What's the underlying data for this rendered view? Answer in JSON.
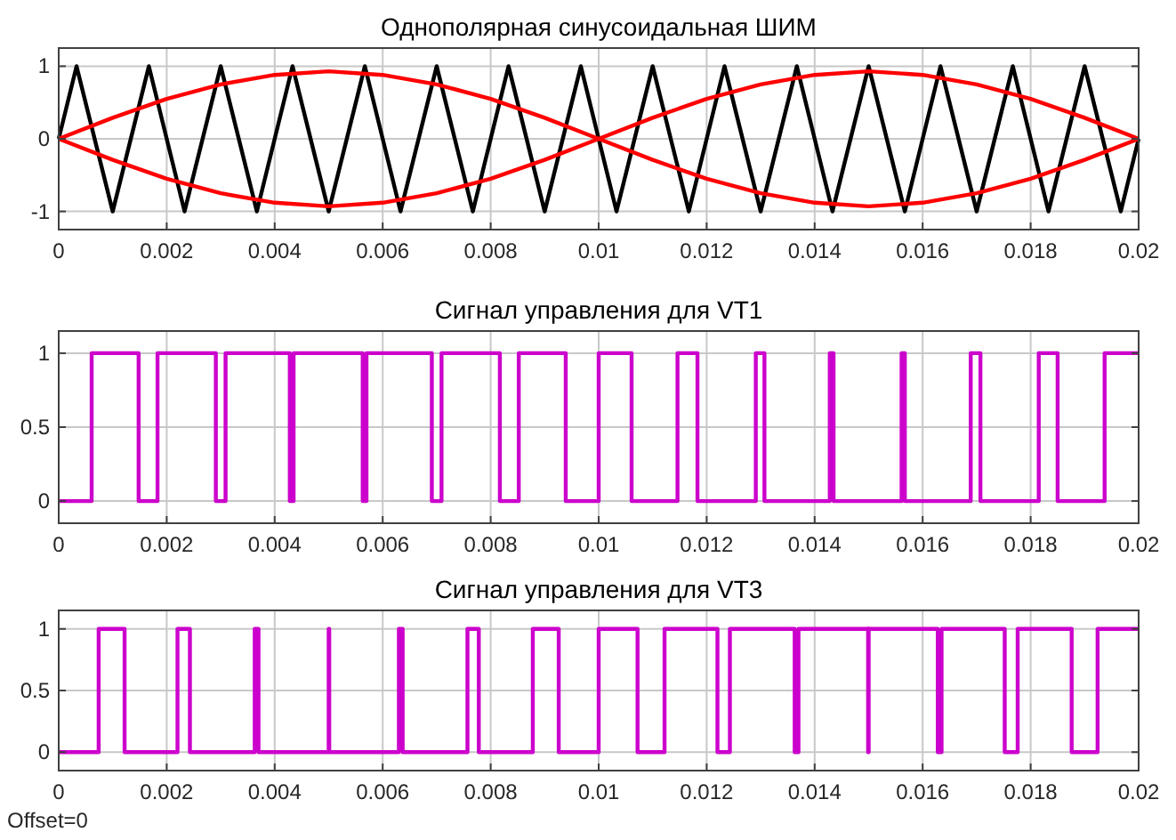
{
  "chart_data": [
    {
      "type": "line",
      "title": "Однополярная синусоидальная ШИМ",
      "xlim": [
        0,
        0.02
      ],
      "xticks": [
        0,
        0.002,
        0.004,
        0.006,
        0.008,
        0.01,
        0.012,
        0.014,
        0.016,
        0.018,
        0.02
      ],
      "ylim": [
        -1.25,
        1.25
      ],
      "yticks": [
        -1,
        0,
        1
      ],
      "grid": true,
      "series": [
        {
          "color": "#000000",
          "x": [
            0,
            0.00033,
            0.001,
            0.00167,
            0.00233,
            0.003,
            0.00367,
            0.00433,
            0.005,
            0.00567,
            0.00633,
            0.007,
            0.00767,
            0.00833,
            0.009,
            0.00967,
            0.01033,
            0.011,
            0.01167,
            0.01233,
            0.013,
            0.01367,
            0.01433,
            0.015,
            0.01567,
            0.01633,
            0.017,
            0.01767,
            0.01833,
            0.019,
            0.01967,
            0.02
          ],
          "values": [
            0,
            1,
            -1,
            1,
            -1,
            1,
            -1,
            1,
            -1,
            1,
            -1,
            1,
            -1,
            1,
            -1,
            1,
            -1,
            1,
            -1,
            1,
            -1,
            1,
            -1,
            1,
            -1,
            1,
            -1,
            1,
            -1,
            1,
            -1,
            0
          ]
        },
        {
          "color": "#ff0000",
          "x": [
            0,
            0.001,
            0.002,
            0.003,
            0.004,
            0.005,
            0.006,
            0.007,
            0.008,
            0.009,
            0.01,
            0.011,
            0.012,
            0.013,
            0.014,
            0.015,
            0.016,
            0.017,
            0.018,
            0.019,
            0.02,
            null,
            0,
            0.001,
            0.002,
            0.003,
            0.004,
            0.005,
            0.006,
            0.007,
            0.008,
            0.009,
            0.01,
            0.011,
            0.012,
            0.013,
            0.014,
            0.015,
            0.016,
            0.017,
            0.018,
            0.019,
            0.02
          ],
          "values": [
            0,
            0.29,
            0.55,
            0.75,
            0.88,
            0.93,
            0.88,
            0.75,
            0.55,
            0.29,
            0,
            -0.29,
            -0.55,
            -0.75,
            -0.88,
            -0.93,
            -0.88,
            -0.75,
            -0.55,
            -0.29,
            0,
            null,
            0,
            -0.29,
            -0.55,
            -0.75,
            -0.88,
            -0.93,
            -0.88,
            -0.75,
            -0.55,
            -0.29,
            0,
            0.29,
            0.55,
            0.75,
            0.88,
            0.93,
            0.88,
            0.75,
            0.55,
            0.29,
            0
          ]
        }
      ]
    },
    {
      "type": "step",
      "title": "Сигнал управления для VT1",
      "xlim": [
        0,
        0.02
      ],
      "xticks": [
        0,
        0.002,
        0.004,
        0.006,
        0.008,
        0.01,
        0.012,
        0.014,
        0.016,
        0.018,
        0.02
      ],
      "ylim": [
        -0.15,
        1.15
      ],
      "yticks": [
        0,
        0.5,
        1
      ],
      "grid": true,
      "series": [
        {
          "color": "#cc00cc",
          "x": [
            0,
            0.00061,
            0.00148,
            0.00183,
            0.00291,
            0.00309,
            0.00428,
            0.00435,
            0.00563,
            0.0057,
            0.00691,
            0.00709,
            0.00817,
            0.00852,
            0.00939,
            0.01,
            0.01061,
            0.01146,
            0.01183,
            0.01291,
            0.01307,
            0.01428,
            0.01435,
            0.01561,
            0.01567,
            0.01689,
            0.01707,
            0.01815,
            0.0185,
            0.01937,
            0.02
          ],
          "values": [
            0,
            1,
            0,
            1,
            0,
            1,
            0,
            1,
            0,
            1,
            0,
            1,
            0,
            1,
            0,
            1,
            0,
            1,
            0,
            1,
            0,
            1,
            0,
            1,
            0,
            1,
            0,
            1,
            0,
            1,
            1
          ]
        }
      ]
    },
    {
      "type": "step",
      "title": "Сигнал управления для VT3",
      "xlim": [
        0,
        0.02
      ],
      "xticks": [
        0,
        0.002,
        0.004,
        0.006,
        0.008,
        0.01,
        0.012,
        0.014,
        0.016,
        0.018,
        0.02
      ],
      "ylim": [
        -0.15,
        1.15
      ],
      "yticks": [
        0,
        0.5,
        1
      ],
      "grid": true,
      "annotations": [
        "Offset=0"
      ],
      "series": [
        {
          "color": "#cc00cc",
          "x": [
            0,
            0.00074,
            0.00122,
            0.0022,
            0.00243,
            0.00363,
            0.0037,
            0.005,
            0.00501,
            0.0063,
            0.00637,
            0.00757,
            0.00778,
            0.00878,
            0.00926,
            0.01,
            0.01072,
            0.01122,
            0.0122,
            0.01243,
            0.01363,
            0.0137,
            0.01499,
            0.015,
            0.01628,
            0.01635,
            0.01752,
            0.01776,
            0.01876,
            0.01924,
            0.02
          ],
          "values": [
            0,
            1,
            0,
            1,
            0,
            1,
            0,
            1,
            0,
            1,
            0,
            1,
            0,
            1,
            0,
            1,
            0,
            1,
            0,
            1,
            0,
            1,
            0,
            1,
            0,
            1,
            0,
            1,
            0,
            1,
            1
          ]
        }
      ]
    }
  ]
}
